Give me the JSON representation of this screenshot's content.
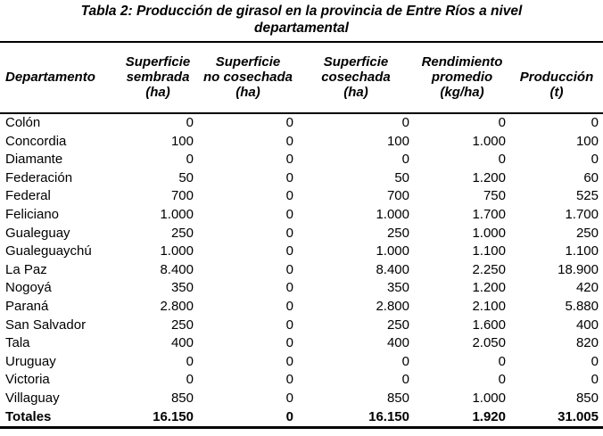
{
  "title": {
    "line1": "Tabla 2: Producción de girasol en la provincia de Entre Ríos a nivel",
    "line2": "departamental"
  },
  "table": {
    "headers": [
      "Departamento",
      "Superficie\nsembrada\n(ha)",
      "Superficie\nno cosechada\n(ha)",
      "Superficie\ncosechada\n(ha)",
      "Rendimiento\npromedio\n(kg/ha)",
      "Producción\n(t)"
    ],
    "rows": [
      [
        "Colón",
        "0",
        "0",
        "0",
        "0",
        "0"
      ],
      [
        "Concordia",
        "100",
        "0",
        "100",
        "1.000",
        "100"
      ],
      [
        "Diamante",
        "0",
        "0",
        "0",
        "0",
        "0"
      ],
      [
        "Federación",
        "50",
        "0",
        "50",
        "1.200",
        "60"
      ],
      [
        "Federal",
        "700",
        "0",
        "700",
        "750",
        "525"
      ],
      [
        "Feliciano",
        "1.000",
        "0",
        "1.000",
        "1.700",
        "1.700"
      ],
      [
        "Gualeguay",
        "250",
        "0",
        "250",
        "1.000",
        "250"
      ],
      [
        "Gualeguaychú",
        "1.000",
        "0",
        "1.000",
        "1.100",
        "1.100"
      ],
      [
        "La Paz",
        "8.400",
        "0",
        "8.400",
        "2.250",
        "18.900"
      ],
      [
        "Nogoyá",
        "350",
        "0",
        "350",
        "1.200",
        "420"
      ],
      [
        "Paraná",
        "2.800",
        "0",
        "2.800",
        "2.100",
        "5.880"
      ],
      [
        "San Salvador",
        "250",
        "0",
        "250",
        "1.600",
        "400"
      ],
      [
        "Tala",
        "400",
        "0",
        "400",
        "2.050",
        "820"
      ],
      [
        "Uruguay",
        "0",
        "0",
        "0",
        "0",
        "0"
      ],
      [
        "Victoria",
        "0",
        "0",
        "0",
        "0",
        "0"
      ],
      [
        "Villaguay",
        "850",
        "0",
        "850",
        "1.000",
        "850"
      ]
    ],
    "totals": [
      "Totales",
      "16.150",
      "0",
      "16.150",
      "1.920",
      "31.005"
    ]
  }
}
